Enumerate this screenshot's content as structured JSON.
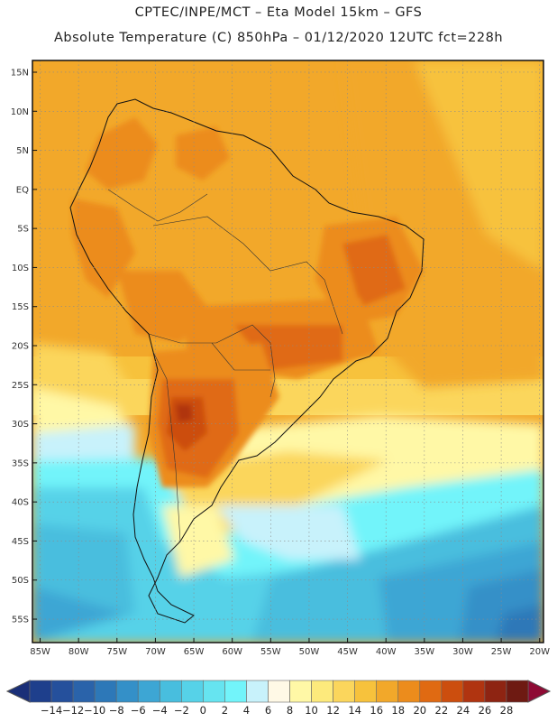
{
  "title": {
    "line1": "CPTEC/INPE/MCT –  Eta Model 15km – GFS",
    "line2": "Absolute Temperature (C) 850hPa – 01/12/2020 12UTC fct=228h"
  },
  "map": {
    "lat_labels": [
      "15N",
      "10N",
      "5N",
      "EQ",
      "5S",
      "10S",
      "15S",
      "20S",
      "25S",
      "30S",
      "35S",
      "40S",
      "45S",
      "50S",
      "55S"
    ],
    "lat_values": [
      15,
      10,
      5,
      0,
      -5,
      -10,
      -15,
      -20,
      -25,
      -30,
      -35,
      -40,
      -45,
      -50,
      -55
    ],
    "lon_labels": [
      "85W",
      "80W",
      "75W",
      "70W",
      "65W",
      "60W",
      "55W",
      "50W",
      "45W",
      "40W",
      "35W",
      "30W",
      "25W",
      "20W"
    ],
    "lon_values": [
      -85,
      -80,
      -75,
      -70,
      -65,
      -60,
      -55,
      -50,
      -45,
      -40,
      -35,
      -30,
      -25,
      -20
    ],
    "extent": {
      "lon_min": -86,
      "lon_max": -19.5,
      "lat_min": -58,
      "lat_max": 16.5
    }
  },
  "colorbar": {
    "labels": [
      "-14",
      "-12",
      "-10",
      "-8",
      "-6",
      "-4",
      "-2",
      "0",
      "2",
      "4",
      "6",
      "8",
      "10",
      "12",
      "14",
      "16",
      "18",
      "20",
      "22",
      "24",
      "26",
      "28"
    ],
    "colors": [
      "#1e3f8c",
      "#25509c",
      "#2a63aa",
      "#2d78b8",
      "#3490c8",
      "#3da6d4",
      "#48bede",
      "#56d2e8",
      "#66e4f0",
      "#72f4fa",
      "#c8f2fb",
      "#fff9e6",
      "#fff8a6",
      "#fdea7c",
      "#fbd65c",
      "#f7c23c",
      "#f2a82a",
      "#ec8c1c",
      "#e06a12",
      "#cc4e0e",
      "#b03410",
      "#8e2412",
      "#6e1a12"
    ],
    "left_arrow_color": "#1a2f78",
    "right_arrow_color": "#8e0a34"
  }
}
